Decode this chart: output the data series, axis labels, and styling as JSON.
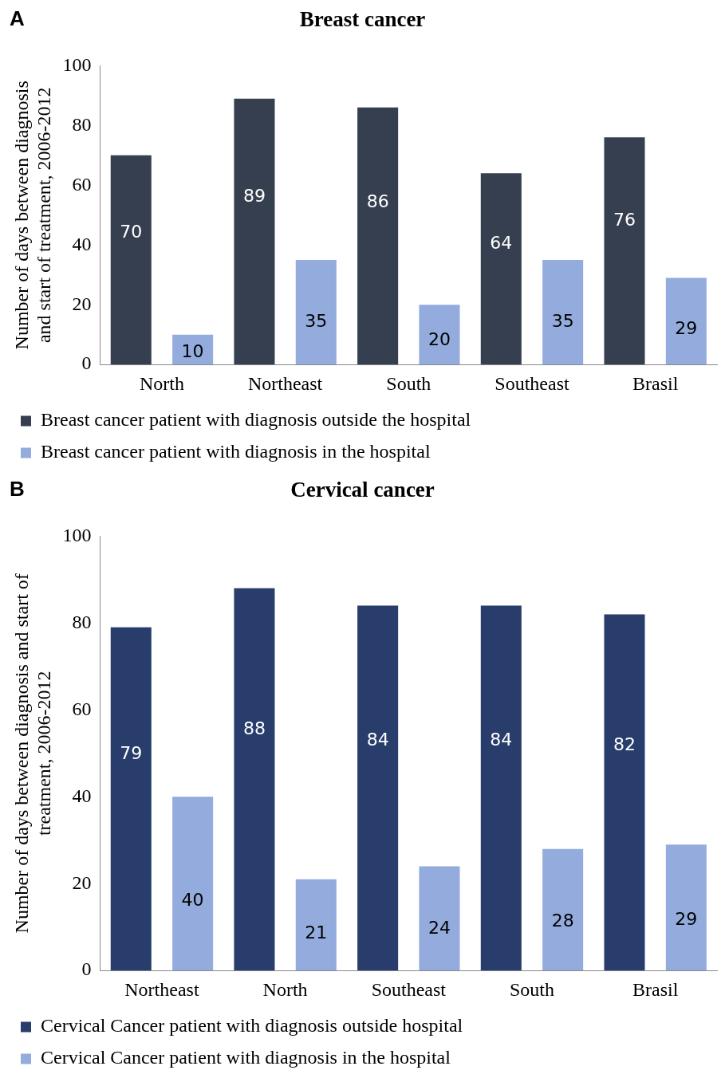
{
  "chart_data": [
    {
      "type": "bar",
      "title": "Breast cancer",
      "annotations": [
        "A"
      ],
      "ylabel": "Number of days between diagnosis\nand start of treatment, 2006-2012",
      "categories": [
        "North",
        "Northeast",
        "South",
        "Southeast",
        "Brasil"
      ],
      "series": [
        {
          "name": "Breast cancer patient with diagnosis outside the hospital",
          "color": "#353f4f",
          "values": [
            70,
            89,
            86,
            64,
            76
          ]
        },
        {
          "name": "Breast cancer patient with diagnosis in the hospital",
          "color": "#93acdd",
          "values": [
            10,
            35,
            20,
            35,
            29
          ]
        }
      ],
      "ylim": [
        0,
        100
      ],
      "yticks": [
        0,
        20,
        40,
        60,
        80,
        100
      ],
      "grid": false,
      "legend": "bottom",
      "data_labels": true
    },
    {
      "type": "bar",
      "title": "Cervical cancer",
      "annotations": [
        "B"
      ],
      "ylabel": "Number of days between diagnosis and start of\ntreatment, 2006-2012",
      "categories": [
        "Northeast",
        "North",
        "Southeast",
        "South",
        "Brasil"
      ],
      "series": [
        {
          "name": "Cervical Cancer patient with diagnosis outside hospital",
          "color": "#283d6b",
          "values": [
            79,
            88,
            84,
            84,
            82
          ]
        },
        {
          "name": "Cervical Cancer patient with diagnosis in the hospital",
          "color": "#93acdd",
          "values": [
            40,
            21,
            24,
            28,
            29
          ]
        }
      ],
      "ylim": [
        0,
        100
      ],
      "yticks": [
        0,
        20,
        40,
        60,
        80,
        100
      ],
      "grid": false,
      "legend": "bottom",
      "data_labels": true
    }
  ]
}
